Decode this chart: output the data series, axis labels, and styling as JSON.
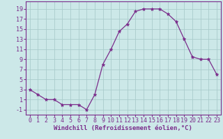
{
  "x": [
    0,
    1,
    2,
    3,
    4,
    5,
    6,
    7,
    8,
    9,
    10,
    11,
    12,
    13,
    14,
    15,
    16,
    17,
    18,
    19,
    20,
    21,
    22,
    23
  ],
  "y": [
    3,
    2,
    1,
    1,
    0,
    0,
    0,
    -1,
    2,
    8,
    11,
    14.5,
    16,
    18.5,
    19,
    19,
    19,
    18,
    16.5,
    13,
    9.5,
    9,
    9,
    6
  ],
  "line_color": "#7b2d8b",
  "marker": "*",
  "marker_size": 3.5,
  "bg_color": "#cce8e8",
  "grid_color": "#aacccc",
  "xlabel": "Windchill (Refroidissement éolien,°C)",
  "xlabel_fontsize": 6.5,
  "tick_fontsize": 6.0,
  "yticks": [
    -1,
    1,
    3,
    5,
    7,
    9,
    11,
    13,
    15,
    17,
    19
  ],
  "xticks": [
    0,
    1,
    2,
    3,
    4,
    5,
    6,
    7,
    8,
    9,
    10,
    11,
    12,
    13,
    14,
    15,
    16,
    17,
    18,
    19,
    20,
    21,
    22,
    23
  ],
  "ylim": [
    -2,
    20.5
  ],
  "xlim": [
    -0.5,
    23.5
  ]
}
